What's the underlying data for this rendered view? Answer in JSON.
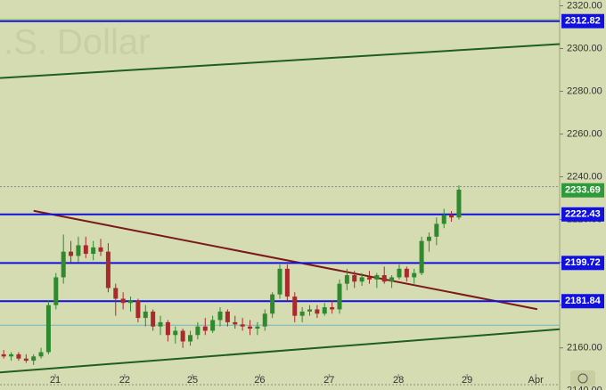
{
  "chart_data": {
    "type": "candlestick",
    "watermark": ".S. Dollar",
    "x": [
      0,
      1,
      2,
      3,
      4,
      5,
      6,
      7,
      8,
      9,
      10,
      11,
      12,
      13,
      14,
      15,
      16,
      17,
      18,
      19,
      20,
      21,
      22,
      23,
      24,
      25,
      26,
      27,
      28,
      29,
      30,
      31,
      32,
      33,
      34,
      35,
      36,
      37,
      38,
      39,
      40,
      41,
      42,
      43,
      44,
      45,
      46,
      47,
      48,
      49,
      50,
      51,
      52,
      53,
      54,
      55,
      56,
      57,
      58,
      59,
      60,
      61
    ],
    "ohlc": [
      [
        2157,
        2159,
        2155,
        2156
      ],
      [
        2156,
        2158,
        2154,
        2157
      ],
      [
        2157,
        2158,
        2154,
        2155
      ],
      [
        2155,
        2157,
        2153,
        2154
      ],
      [
        2154,
        2157,
        2152,
        2156
      ],
      [
        2156,
        2160,
        2155,
        2158
      ],
      [
        2158,
        2182,
        2157,
        2180
      ],
      [
        2180,
        2195,
        2178,
        2193
      ],
      [
        2193,
        2213,
        2190,
        2205
      ],
      [
        2205,
        2210,
        2200,
        2203
      ],
      [
        2203,
        2212,
        2200,
        2208
      ],
      [
        2208,
        2212,
        2202,
        2204
      ],
      [
        2204,
        2210,
        2201,
        2207
      ],
      [
        2207,
        2211,
        2203,
        2205
      ],
      [
        2205,
        2209,
        2186,
        2188
      ],
      [
        2188,
        2190,
        2175,
        2183
      ],
      [
        2183,
        2186,
        2178,
        2181
      ],
      [
        2181,
        2184,
        2177,
        2182
      ],
      [
        2182,
        2183,
        2172,
        2174
      ],
      [
        2174,
        2180,
        2170,
        2177
      ],
      [
        2177,
        2178,
        2168,
        2170
      ],
      [
        2170,
        2175,
        2166,
        2172
      ],
      [
        2172,
        2173,
        2163,
        2166
      ],
      [
        2166,
        2170,
        2162,
        2168
      ],
      [
        2168,
        2169,
        2160,
        2163
      ],
      [
        2163,
        2168,
        2161,
        2166
      ],
      [
        2166,
        2172,
        2164,
        2170
      ],
      [
        2170,
        2174,
        2166,
        2168
      ],
      [
        2168,
        2175,
        2167,
        2173
      ],
      [
        2173,
        2179,
        2170,
        2177
      ],
      [
        2177,
        2178,
        2170,
        2172
      ],
      [
        2172,
        2175,
        2169,
        2171
      ],
      [
        2171,
        2174,
        2168,
        2170
      ],
      [
        2170,
        2173,
        2166,
        2169
      ],
      [
        2169,
        2172,
        2166,
        2170
      ],
      [
        2170,
        2178,
        2168,
        2176
      ],
      [
        2176,
        2186,
        2174,
        2185
      ],
      [
        2185,
        2199,
        2183,
        2197
      ],
      [
        2197,
        2199,
        2182,
        2184
      ],
      [
        2184,
        2186,
        2172,
        2175
      ],
      [
        2175,
        2179,
        2172,
        2177
      ],
      [
        2177,
        2180,
        2175,
        2178
      ],
      [
        2178,
        2180,
        2174,
        2176
      ],
      [
        2176,
        2181,
        2175,
        2179
      ],
      [
        2179,
        2182,
        2176,
        2178
      ],
      [
        2178,
        2192,
        2176,
        2190
      ],
      [
        2190,
        2197,
        2187,
        2194
      ],
      [
        2194,
        2196,
        2188,
        2191
      ],
      [
        2191,
        2195,
        2189,
        2193
      ],
      [
        2193,
        2196,
        2190,
        2192
      ],
      [
        2192,
        2195,
        2188,
        2194
      ],
      [
        2194,
        2198,
        2190,
        2191
      ],
      [
        2191,
        2194,
        2188,
        2193
      ],
      [
        2193,
        2199,
        2192,
        2197
      ],
      [
        2197,
        2198,
        2191,
        2193
      ],
      [
        2193,
        2197,
        2190,
        2195
      ],
      [
        2195,
        2212,
        2194,
        2210
      ],
      [
        2210,
        2214,
        2205,
        2212
      ],
      [
        2212,
        2221,
        2208,
        2218
      ],
      [
        2218,
        2225,
        2216,
        2222
      ],
      [
        2222,
        2224,
        2219,
        2221
      ],
      [
        2221,
        2236,
        2220,
        2234
      ]
    ],
    "up_color": "#2f8a2f",
    "down_color": "#a82a2a",
    "xlim": [
      -0.5,
      74.5
    ],
    "xticks": [
      {
        "value": 6.9,
        "label": "21"
      },
      {
        "value": 16.2,
        "label": "22"
      },
      {
        "value": 25.3,
        "label": "25"
      },
      {
        "value": 34.3,
        "label": "26"
      },
      {
        "value": 43.6,
        "label": "27"
      },
      {
        "value": 52.9,
        "label": "28"
      },
      {
        "value": 62.1,
        "label": "29"
      },
      {
        "value": 71.3,
        "label": "Apr"
      }
    ],
    "ylim": [
      2140.3,
      2322.7
    ],
    "yticks": [
      {
        "value": 2140,
        "label": "2140.00"
      },
      {
        "value": 2160,
        "label": "2160.00"
      },
      {
        "value": 2180,
        "label": "2180.00"
      },
      {
        "value": 2200,
        "label": "2200.00"
      },
      {
        "value": 2220,
        "label": "2220.00"
      },
      {
        "value": 2240,
        "label": "2240.00"
      },
      {
        "value": 2260,
        "label": "2260.00"
      },
      {
        "value": 2280,
        "label": "2280.00"
      },
      {
        "value": 2300,
        "label": "2300.00"
      },
      {
        "value": 2320,
        "label": "2320.00"
      }
    ],
    "levels": [
      {
        "value": 2312.82,
        "color": "#1010e0"
      },
      {
        "value": 2222.43,
        "color": "#1010e0"
      },
      {
        "value": 2199.72,
        "color": "#1010e0"
      },
      {
        "value": 2181.84,
        "color": "#1010e0"
      }
    ],
    "last_price": {
      "value": 2233.69,
      "color": "#2f9a3a"
    },
    "trend_lines": [
      {
        "x": [
          -0.5,
          74.5
        ],
        "y": [
          2286.2,
          2302.1
        ],
        "color": "#1f5e1f"
      },
      {
        "x": [
          -0.5,
          74.5
        ],
        "y": [
          2148.5,
          2168.7
        ],
        "color": "#1f5e1f"
      },
      {
        "x": [
          4.0,
          71.5
        ],
        "y": [
          2224.1,
          2178.1
        ],
        "color": "#7a1a1a"
      }
    ],
    "extra_lines": [
      {
        "value": 2313.7,
        "color": "#8fcf3f",
        "dash": false
      },
      {
        "value": 2170.6,
        "color": "#6fb6c6",
        "dash": false
      },
      {
        "value": 2235.4,
        "color": "#8a8a8a",
        "dash": true
      },
      {
        "value": 2142.8,
        "color": "#8a8a8a",
        "dash": true
      }
    ]
  }
}
